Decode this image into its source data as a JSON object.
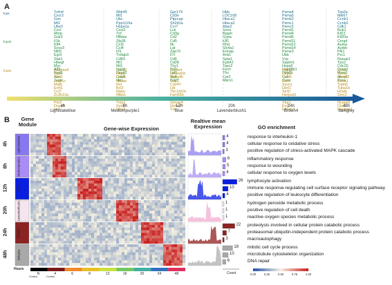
{
  "panel_a": {
    "letter": "A",
    "tiers": [
      "Top5",
      "Top30",
      "Top50"
    ],
    "columns": [
      {
        "time": "4h",
        "module": "Lightslateblue",
        "green": [
          "Tnfrsf",
          "Cxcr2",
          "Gsn",
          "Mt2",
          "Ube2",
          "Cxcl",
          "Mmp",
          "Gsk3",
          "Il1b",
          "Klf4",
          "Socs3",
          "Nfil3",
          "Egr3",
          "Stat1",
          "Hbegf",
          "Myc",
          "Atf3",
          "Fosl1",
          "Jun",
          "Junb"
        ],
        "gold": [
          "Adamts4",
          "Sgk1",
          "Rnd1",
          "Jmjd1c",
          "Mafb",
          "Errfi1",
          "Ccl7",
          "Zc3h12a",
          "Sertad1",
          "Ptx3",
          "Dusp5",
          "Ier3"
        ]
      },
      {
        "time": "8h",
        "module": "Mediumpurple1",
        "green": [
          "Wdr45",
          "Mt1",
          "Ubc",
          "Ppp1r15a",
          "Hspa1a",
          "Cxcl2",
          "Tnf",
          "Nfkbia",
          "Zfp36",
          "Ccl3",
          "Ccl4",
          "Irf1",
          "Tnfaip3",
          "Cd83",
          "Ifit1",
          "Ifit3",
          "Isg15",
          "Rsad2",
          "Oasl1",
          "Mx1"
        ],
        "gold": [
          "Ccnd1",
          "Hbp1",
          "Cd44",
          "Nfkbie",
          "Rel",
          "Bcl3",
          "Ikbke",
          "Nfkb1",
          "Relb",
          "Tnip1",
          "Sod2",
          "Gbp2"
        ]
      },
      {
        "time": "12h",
        "module": "Blue",
        "green": [
          "Gpr174",
          "Cd3e",
          "Ptprcap",
          "Sh2d1a",
          "Ccr7",
          "Lck",
          "Cd3g",
          "Cd2",
          "Cd5",
          "Itk",
          "Lat",
          "Zap70",
          "Il7r",
          "Cd6",
          "Cd28",
          "Thy1",
          "Tcf7",
          "Lef1",
          "Sell",
          "Cd27"
        ],
        "gold": [
          "Camk4",
          "Dennd2d",
          "Ms4a4b",
          "Trat1",
          "Cd247",
          "Ltb",
          "Tbc1d10c",
          "Fam65b",
          "Gimap3",
          "Gimap4",
          "Gimap7",
          "Txk"
        ]
      },
      {
        "time": "20h",
        "module": "Lavenderblush1",
        "green": [
          "Hbb",
          "LOC108",
          "Hba-a1",
          "Hba-a2",
          "Alas2",
          "Snca",
          "Bpgm",
          "Gypa",
          "Klf1",
          "Rhd",
          "Slc4a1",
          "Ermap",
          "Ank1",
          "Spta1",
          "Epb42",
          "Tspo2",
          "Fech",
          "Tfrc",
          "Car2",
          "Mkrn1"
        ],
        "gold": [
          "-",
          "-",
          "-",
          "-",
          "-",
          "-",
          "-",
          "-",
          "-",
          "-",
          "-",
          "-"
        ]
      },
      {
        "time": "24h",
        "module": "Brown4",
        "green": [
          "Psma4",
          "Psma5",
          "Psmb2",
          "Psmc1",
          "Psmc3",
          "Psmd1",
          "Psmd4",
          "Psmd6",
          "Psmd11",
          "Psmd12",
          "Psmd14",
          "Psme3",
          "Ubb",
          "Vcp",
          "Sqstm1",
          "Hspa5",
          "Hsp90b1",
          "Pdia3",
          "Calr",
          "Canx"
        ],
        "gold": [
          "Ndfip1",
          "Usp14",
          "Uchl5",
          "Rnf5",
          "Syvn1",
          "Derl1",
          "Sel1l",
          "Herpud1",
          "Atf6",
          "Xbp1",
          "Ern1",
          "Eif2ak3"
        ]
      },
      {
        "time": "48h",
        "module": "darkgrey",
        "green": [
          "Top2a",
          "Mki67",
          "Ccnb1",
          "Ccnb2",
          "Cdk1",
          "Bub1",
          "Kif11",
          "Kif20a",
          "Cenpf",
          "Aurka",
          "Aurkb",
          "Plk1",
          "Prc1",
          "Nusap1",
          "Tpx2",
          "Cdc20",
          "Ccna2",
          "Mcm2",
          "Mcm5",
          "Pcna"
        ],
        "gold": [
          "Rrm2",
          "Tyms",
          "Hmgb2",
          "Stmn1",
          "Tubb5",
          "Tuba1b",
          "H2afz",
          "Smc2",
          "Smc4",
          "Ncapd2",
          "Cks2",
          "Racgap1"
        ]
      }
    ]
  },
  "panel_b": {
    "letter": "B",
    "headers": {
      "module": "Gene Module",
      "heatmap": "Gene-wise Expression",
      "mean": "Realtive mean Expression",
      "go": "GO enrichment"
    },
    "rows": [
      {
        "time": "4h",
        "module": "Lightslateblue",
        "color": "#8878f0",
        "mean_color": "#9a8ff2",
        "terms": [
          {
            "label": "response to interleukin-1",
            "count": 4
          },
          {
            "label": "cellular response to oxidative stress",
            "count": 4
          },
          {
            "label": "positive regulation of stress-activated MAPK cascade",
            "count": 3
          }
        ]
      },
      {
        "time": "8h",
        "module": "Mediumpurple1",
        "color": "#a98cf6",
        "mean_color": "#b49cf5",
        "terms": [
          {
            "label": "inflammatory response",
            "count": 6
          },
          {
            "label": "response to wounding",
            "count": 5
          },
          {
            "label": "cellular response to oxygen levels",
            "count": 4
          }
        ]
      },
      {
        "time": "12h",
        "module": "Blue",
        "color": "#0a1ee0",
        "mean_color": "#2a3ae6",
        "terms": [
          {
            "label": "lymphocyte activation",
            "count": 26
          },
          {
            "label": "immune response-regulating cell surface receptor signaling pathway",
            "count": 10
          },
          {
            "label": "positive regulation of leukocyte differentiation",
            "count": 4
          }
        ]
      },
      {
        "time": "20h",
        "module": "Lavenderblush1",
        "color": "#f6e4ee",
        "mean_color": "#f3b6d6",
        "terms": [
          {
            "label": "hydrogen peroxide metabolic process",
            "count": 1
          },
          {
            "label": "positive regulation of cell death",
            "count": 1
          },
          {
            "label": "reactive oxygen species metabolic process",
            "count": 1
          }
        ]
      },
      {
        "time": "24h",
        "module": "Brown4",
        "color": "#8b2323",
        "mean_color": "#9e3a3a",
        "terms": [
          {
            "label": "proteolysis involved in cellular protein catabolic process",
            "count": 22
          },
          {
            "label": "proteasomal ubiquitin-independent protein catabolic process",
            "count": 7
          },
          {
            "label": "macroautophagy",
            "count": 3
          }
        ]
      },
      {
        "time": "48h",
        "module": "darkgrey",
        "color": "#a9a9a9",
        "mean_color": "#b8b8b8",
        "terms": [
          {
            "label": "mitotic cell cycle process",
            "count": 18
          },
          {
            "label": "microtubule cytoskeleton organization",
            "count": 10
          },
          {
            "label": "DNA repair",
            "count": 6
          }
        ]
      }
    ],
    "hours_label": "Hours",
    "hours": [
      "N",
      "4",
      "6",
      "8",
      "12",
      "16",
      "20",
      "24",
      "48"
    ],
    "control_labels": [
      "Control",
      "Control"
    ],
    "hours_colors": [
      "#000000",
      "#7a1a1a",
      "#f08a2a",
      "#e8c020",
      "#c8e040",
      "#70c860",
      "#40b0a0",
      "#3070c0",
      "#e03060"
    ],
    "count_label": "Count",
    "count_axis": [
      "0",
      "10",
      "20"
    ],
    "go_axis": [
      "0.00",
      "0.25",
      "0.50",
      "0.75",
      "1.00"
    ],
    "palette": {
      "low": "#1f4fa8",
      "mid": "#f5f0e0",
      "high": "#c81e1e"
    }
  }
}
